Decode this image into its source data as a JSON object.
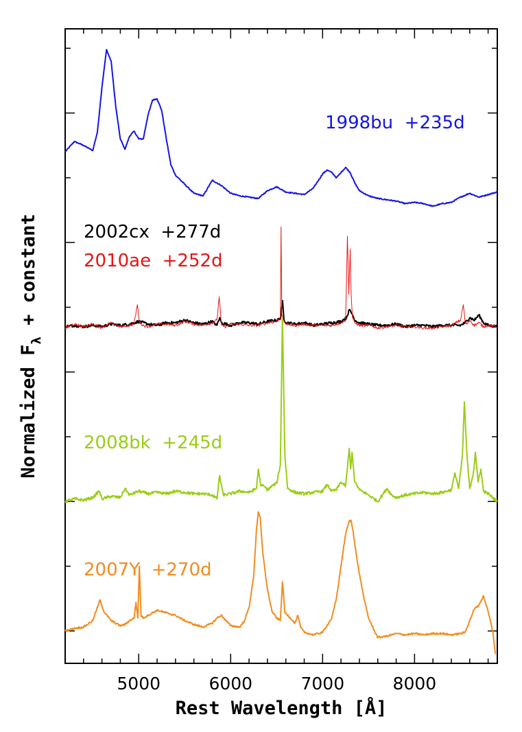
{
  "chart_data": {
    "type": "line",
    "xlabel": "Rest Wavelength [Å]",
    "ylabel": "Normalized F",
    "ylabel_sub": "λ",
    "ylabel_suffix": " + constant",
    "xlim": [
      4200,
      8900
    ],
    "ylim": [
      -0.25,
      4.65
    ],
    "x_ticks": [
      5000,
      6000,
      7000,
      8000
    ],
    "x_tick_labels": [
      "5000",
      "6000",
      "7000",
      "8000"
    ],
    "y_tick_labels_shown": false,
    "grid": false,
    "annotations": [
      {
        "text": "1998bu  +235d",
        "color": "#1414e6"
      },
      {
        "text": "2002cx  +277d",
        "color": "#000000"
      },
      {
        "text": "2010ae  +252d",
        "color": "#e61414"
      },
      {
        "text": "2008bk  +245d",
        "color": "#9acd14"
      },
      {
        "text": "2007Y  +270d",
        "color": "#f28c1e"
      }
    ],
    "series": [
      {
        "name": "1998bu +235d",
        "color": "#1414e6",
        "x": [
          4200,
          4300,
          4400,
          4500,
          4550,
          4600,
          4650,
          4700,
          4750,
          4800,
          4850,
          4900,
          4950,
          5000,
          5050,
          5100,
          5150,
          5200,
          5250,
          5300,
          5350,
          5400,
          5500,
          5600,
          5700,
          5800,
          5900,
          6000,
          6100,
          6200,
          6300,
          6400,
          6500,
          6600,
          6700,
          6800,
          6900,
          7000,
          7050,
          7100,
          7150,
          7200,
          7250,
          7300,
          7350,
          7400,
          7500,
          7600,
          7700,
          7800,
          7900,
          8000,
          8100,
          8200,
          8300,
          8400,
          8500,
          8600,
          8700,
          8800,
          8900
        ],
        "y": [
          3.7,
          3.78,
          3.75,
          3.71,
          3.85,
          4.2,
          4.49,
          4.4,
          4.05,
          3.8,
          3.72,
          3.82,
          3.86,
          3.8,
          3.8,
          3.98,
          4.1,
          4.11,
          4.02,
          3.8,
          3.6,
          3.52,
          3.45,
          3.38,
          3.36,
          3.48,
          3.44,
          3.38,
          3.36,
          3.35,
          3.34,
          3.4,
          3.43,
          3.39,
          3.38,
          3.37,
          3.42,
          3.53,
          3.56,
          3.54,
          3.5,
          3.54,
          3.58,
          3.54,
          3.46,
          3.4,
          3.36,
          3.34,
          3.33,
          3.32,
          3.3,
          3.31,
          3.3,
          3.28,
          3.3,
          3.31,
          3.35,
          3.38,
          3.35,
          3.37,
          3.39
        ]
      },
      {
        "name": "2002cx +277d",
        "color": "#000000",
        "x": [
          4200,
          4300,
          4400,
          4500,
          4600,
          4700,
          4800,
          4900,
          4950,
          5000,
          5100,
          5200,
          5300,
          5400,
          5500,
          5600,
          5700,
          5800,
          5850,
          5880,
          5900,
          5950,
          6000,
          6100,
          6200,
          6300,
          6400,
          6500,
          6540,
          6563,
          6580,
          6620,
          6700,
          6800,
          6900,
          7000,
          7100,
          7200,
          7260,
          7290,
          7320,
          7350,
          7400,
          7500,
          7600,
          7700,
          7800,
          7900,
          8000,
          8100,
          8200,
          8300,
          8400,
          8500,
          8550,
          8600,
          8650,
          8700,
          8750,
          8800,
          8900
        ],
        "y": [
          2.35,
          2.36,
          2.35,
          2.36,
          2.35,
          2.37,
          2.36,
          2.37,
          2.38,
          2.39,
          2.37,
          2.36,
          2.38,
          2.38,
          2.4,
          2.38,
          2.37,
          2.39,
          2.36,
          2.42,
          2.38,
          2.37,
          2.36,
          2.38,
          2.38,
          2.37,
          2.39,
          2.4,
          2.41,
          2.55,
          2.4,
          2.38,
          2.37,
          2.38,
          2.36,
          2.37,
          2.38,
          2.39,
          2.42,
          2.48,
          2.45,
          2.4,
          2.38,
          2.37,
          2.36,
          2.36,
          2.37,
          2.35,
          2.36,
          2.36,
          2.35,
          2.36,
          2.36,
          2.36,
          2.38,
          2.42,
          2.4,
          2.44,
          2.38,
          2.36,
          2.35
        ]
      },
      {
        "name": "2010ae +252d",
        "color": "#e61414",
        "x": [
          4200,
          4300,
          4400,
          4500,
          4600,
          4700,
          4800,
          4900,
          4950,
          4985,
          5010,
          5050,
          5100,
          5200,
          5300,
          5400,
          5500,
          5600,
          5700,
          5800,
          5850,
          5875,
          5900,
          5950,
          6000,
          6100,
          6200,
          6300,
          6400,
          6500,
          6540,
          6548,
          6556,
          6570,
          6600,
          6700,
          6800,
          6900,
          7000,
          7100,
          7200,
          7250,
          7270,
          7285,
          7300,
          7310,
          7325,
          7350,
          7400,
          7500,
          7600,
          7700,
          7800,
          7900,
          8000,
          8100,
          8200,
          8300,
          8400,
          8500,
          8530,
          8550,
          8570,
          8600,
          8650,
          8700,
          8750,
          8800,
          8900
        ],
        "y": [
          2.34,
          2.37,
          2.35,
          2.37,
          2.34,
          2.38,
          2.35,
          2.36,
          2.37,
          2.52,
          2.38,
          2.36,
          2.35,
          2.37,
          2.37,
          2.36,
          2.39,
          2.37,
          2.36,
          2.38,
          2.4,
          2.58,
          2.36,
          2.35,
          2.37,
          2.37,
          2.36,
          2.36,
          2.38,
          2.39,
          2.42,
          3.12,
          2.45,
          2.4,
          2.37,
          2.36,
          2.37,
          2.36,
          2.36,
          2.36,
          2.38,
          2.4,
          3.05,
          2.6,
          2.95,
          2.6,
          2.42,
          2.38,
          2.36,
          2.36,
          2.34,
          2.35,
          2.36,
          2.35,
          2.35,
          2.34,
          2.34,
          2.35,
          2.36,
          2.4,
          2.52,
          2.38,
          2.37,
          2.4,
          2.36,
          2.38,
          2.35,
          2.36,
          2.35
        ]
      },
      {
        "name": "2008bk +245d",
        "color": "#9acd14",
        "x": [
          4200,
          4300,
          4400,
          4500,
          4570,
          4600,
          4700,
          4800,
          4850,
          4900,
          5000,
          5100,
          5200,
          5300,
          5400,
          5500,
          5600,
          5700,
          5800,
          5850,
          5880,
          5920,
          6000,
          6100,
          6200,
          6280,
          6300,
          6330,
          6360,
          6400,
          6450,
          6500,
          6540,
          6563,
          6590,
          6620,
          6700,
          6800,
          6900,
          7000,
          7050,
          7100,
          7150,
          7200,
          7250,
          7290,
          7305,
          7320,
          7350,
          7400,
          7500,
          7600,
          7650,
          7700,
          7750,
          7800,
          7900,
          8000,
          8100,
          8200,
          8300,
          8400,
          8440,
          8480,
          8520,
          8542,
          8570,
          8600,
          8640,
          8662,
          8690,
          8720,
          8750,
          8800,
          8900
        ],
        "y": [
          1.0,
          1.02,
          1.01,
          1.03,
          1.08,
          1.02,
          1.04,
          1.03,
          1.1,
          1.05,
          1.08,
          1.06,
          1.07,
          1.06,
          1.08,
          1.07,
          1.06,
          1.06,
          1.05,
          1.02,
          1.2,
          1.05,
          1.06,
          1.08,
          1.07,
          1.1,
          1.25,
          1.12,
          1.12,
          1.09,
          1.12,
          1.14,
          1.28,
          2.42,
          1.35,
          1.1,
          1.07,
          1.06,
          1.07,
          1.08,
          1.13,
          1.08,
          1.09,
          1.15,
          1.12,
          1.41,
          1.25,
          1.38,
          1.15,
          1.09,
          1.05,
          1.0,
          1.05,
          1.1,
          1.05,
          1.03,
          1.05,
          1.06,
          1.07,
          1.06,
          1.07,
          1.09,
          1.22,
          1.1,
          1.35,
          1.77,
          1.35,
          1.1,
          1.22,
          1.38,
          1.15,
          1.25,
          1.08,
          1.06,
          1.0
        ]
      },
      {
        "name": "2007Y +270d",
        "color": "#f28c1e",
        "x": [
          4200,
          4300,
          4400,
          4500,
          4550,
          4580,
          4620,
          4700,
          4800,
          4850,
          4900,
          4950,
          4970,
          4990,
          5007,
          5025,
          5050,
          5100,
          5200,
          5300,
          5400,
          5500,
          5600,
          5700,
          5800,
          5850,
          5900,
          5950,
          6000,
          6100,
          6150,
          6200,
          6250,
          6280,
          6300,
          6320,
          6350,
          6400,
          6450,
          6500,
          6540,
          6563,
          6590,
          6650,
          6700,
          6730,
          6760,
          6800,
          6900,
          7000,
          7100,
          7150,
          7200,
          7250,
          7290,
          7310,
          7330,
          7380,
          7450,
          7500,
          7550,
          7600,
          7700,
          7800,
          7900,
          8000,
          8100,
          8200,
          8300,
          8400,
          8500,
          8550,
          8600,
          8650,
          8700,
          8750,
          8800,
          8850,
          8880
        ],
        "y": [
          0.0,
          0.02,
          0.03,
          0.08,
          0.18,
          0.24,
          0.15,
          0.08,
          0.04,
          0.05,
          0.08,
          0.1,
          0.22,
          0.1,
          0.5,
          0.12,
          0.1,
          0.12,
          0.16,
          0.14,
          0.12,
          0.08,
          0.05,
          0.03,
          0.06,
          0.1,
          0.12,
          0.08,
          0.04,
          0.03,
          0.08,
          0.18,
          0.42,
          0.78,
          0.92,
          0.88,
          0.6,
          0.32,
          0.15,
          0.1,
          0.08,
          0.38,
          0.14,
          0.1,
          0.06,
          0.12,
          0.03,
          -0.01,
          -0.03,
          -0.01,
          0.1,
          0.25,
          0.5,
          0.75,
          0.85,
          0.85,
          0.78,
          0.52,
          0.25,
          0.1,
          0.02,
          -0.05,
          -0.04,
          -0.02,
          -0.03,
          -0.02,
          -0.03,
          -0.02,
          -0.02,
          -0.03,
          -0.02,
          -0.01,
          0.08,
          0.17,
          0.2,
          0.27,
          0.15,
          0.0,
          -0.18
        ]
      }
    ]
  }
}
